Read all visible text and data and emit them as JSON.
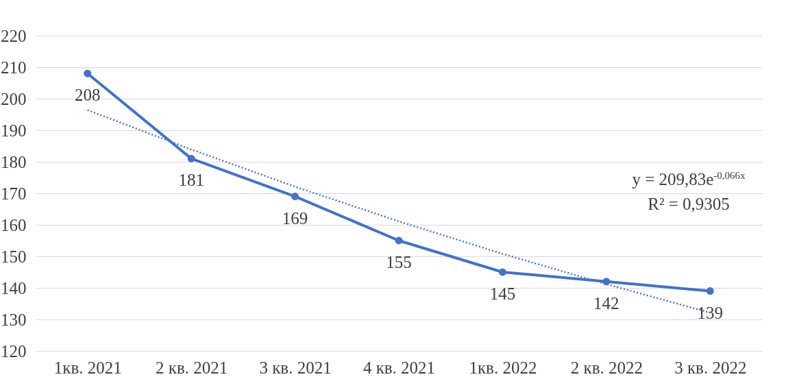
{
  "chart_data": {
    "type": "line",
    "categories": [
      "1кв. 2021",
      "2 кв. 2021",
      "3 кв. 2021",
      "4 кв. 2021",
      "1кв. 2022",
      "2 кв. 2022",
      "3 кв. 2022"
    ],
    "series": [
      {
        "color": "#4472c4",
        "values": [
          208,
          181,
          169,
          155,
          145,
          142,
          139
        ],
        "value_labels": [
          "208",
          "181",
          "169",
          "155",
          "145",
          "142",
          "139"
        ],
        "marker": "circle",
        "line_style": "solid"
      },
      {
        "type": "line",
        "color": "#4472c4",
        "values": [
          196.4,
          183.9,
          172.1,
          161.1,
          150.8,
          141.2,
          132.1
        ],
        "marker": "none",
        "line_style": "dotted"
      }
    ],
    "ylim": [
      120,
      220
    ],
    "yticks": [
      120,
      130,
      140,
      150,
      160,
      170,
      180,
      190,
      200,
      210,
      220
    ],
    "grid": "y",
    "annotations": [
      "y = 209,83e$^{-0,066x}$",
      "R² = 0,9305"
    ]
  }
}
